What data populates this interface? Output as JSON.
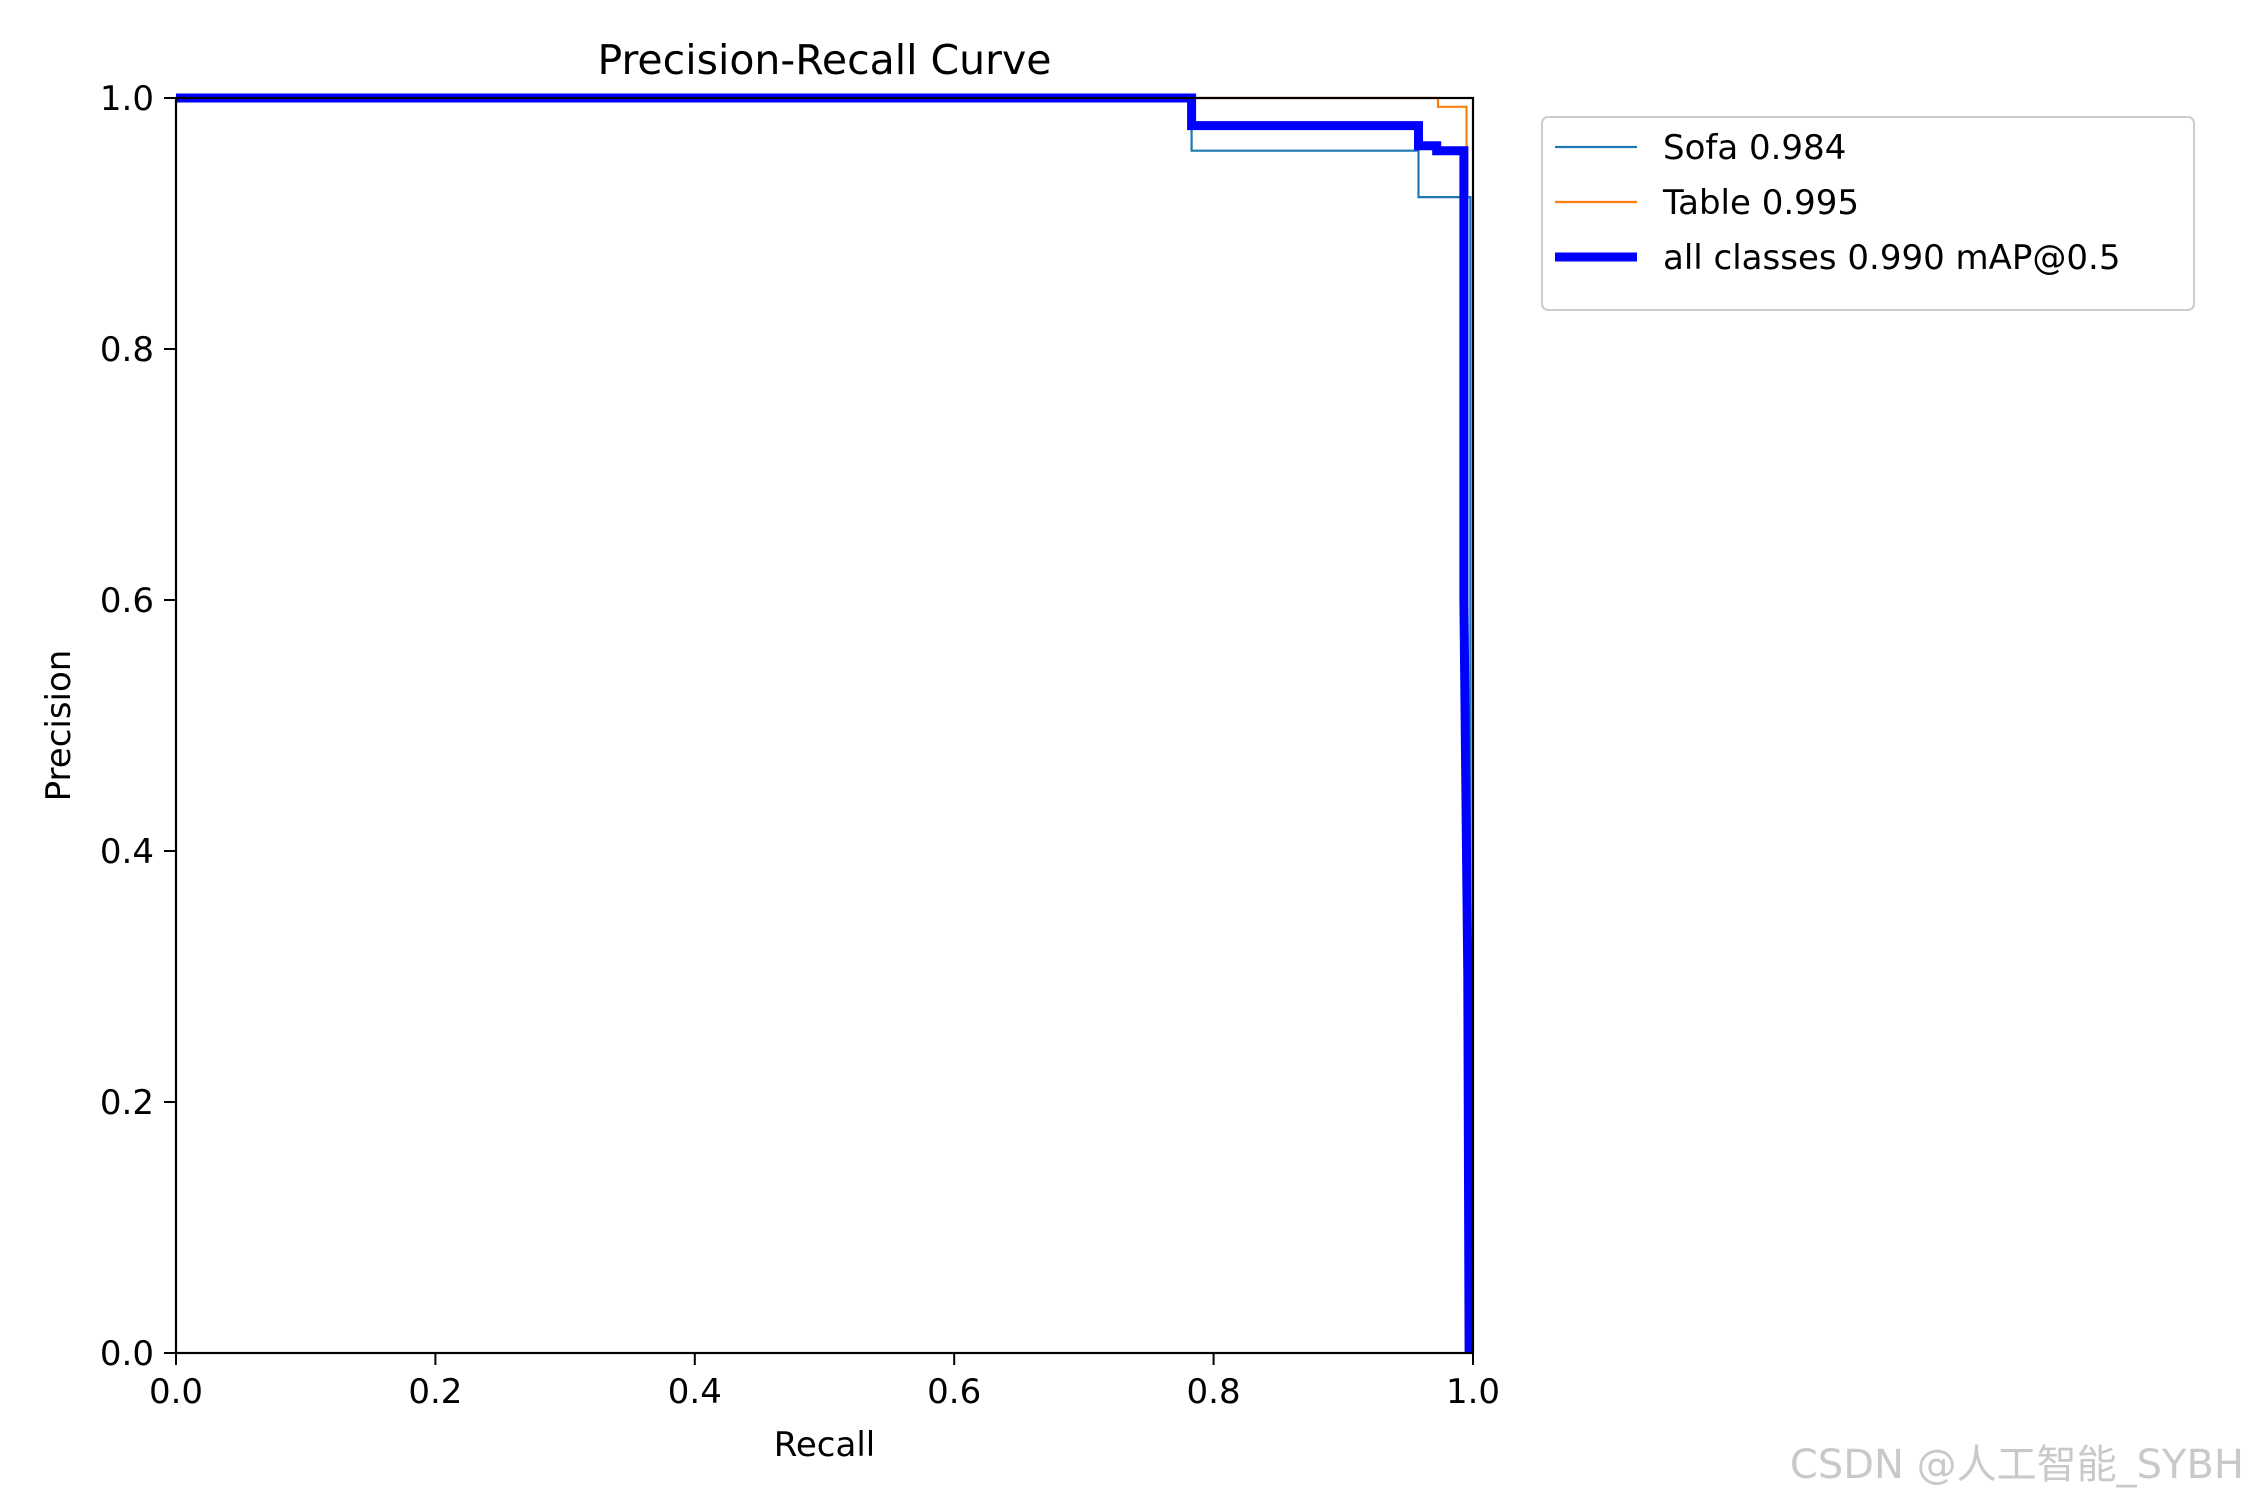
{
  "chart_data": {
    "type": "line",
    "title": "Precision-Recall Curve",
    "xlabel": "Recall",
    "ylabel": "Precision",
    "xlim": [
      0.0,
      1.0
    ],
    "ylim": [
      0.0,
      1.0
    ],
    "xticks": [
      "0.0",
      "0.2",
      "0.4",
      "0.6",
      "0.8",
      "1.0"
    ],
    "yticks": [
      "0.0",
      "0.2",
      "0.4",
      "0.6",
      "0.8",
      "1.0"
    ],
    "grid": false,
    "legend_position": "outside-top-right",
    "series": [
      {
        "name": "Sofa 0.984",
        "color": "#1f77b4",
        "style": "thin",
        "points": [
          [
            0.0,
            1.0
          ],
          [
            0.783,
            1.0
          ],
          [
            0.783,
            0.958
          ],
          [
            0.958,
            0.958
          ],
          [
            0.958,
            0.921
          ],
          [
            0.998,
            0.921
          ],
          [
            0.998,
            0.0
          ]
        ]
      },
      {
        "name": "Table 0.995",
        "color": "#ff7f0e",
        "style": "thin",
        "points": [
          [
            0.0,
            1.0
          ],
          [
            0.973,
            1.0
          ],
          [
            0.973,
            0.993
          ],
          [
            0.995,
            0.993
          ],
          [
            0.995,
            0.0
          ]
        ]
      },
      {
        "name": "all classes 0.990 mAP@0.5",
        "color": "#0000ff",
        "style": "bold",
        "points": [
          [
            0.0,
            1.0
          ],
          [
            0.783,
            1.0
          ],
          [
            0.783,
            0.978
          ],
          [
            0.958,
            0.978
          ],
          [
            0.958,
            0.962
          ],
          [
            0.972,
            0.962
          ],
          [
            0.972,
            0.958
          ],
          [
            0.993,
            0.958
          ],
          [
            0.993,
            0.6
          ],
          [
            0.996,
            0.3
          ],
          [
            0.997,
            0.0
          ]
        ]
      }
    ]
  },
  "watermark": "CSDN @人工智能_SYBH"
}
